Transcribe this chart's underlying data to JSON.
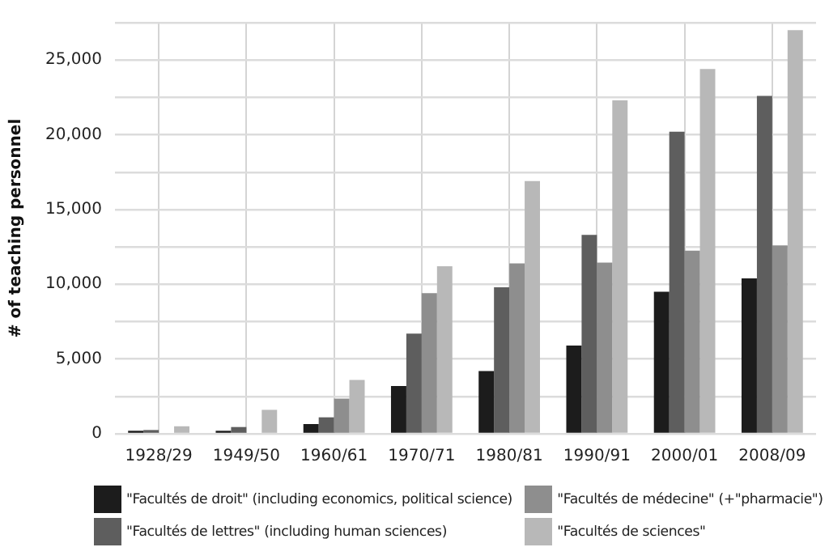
{
  "chart_data": {
    "type": "bar",
    "ylabel": "# of teaching personnel",
    "categories": [
      "1928/29",
      "1949/50",
      "1960/61",
      "1970/71",
      "1980/81",
      "1990/91",
      "2000/01",
      "2008/09"
    ],
    "series": [
      {
        "name": "\"Facultés de droit\" (including economics, political science)",
        "color": "#1c1c1c",
        "values": [
          200,
          200,
          650,
          3200,
          4200,
          5900,
          9500,
          10400
        ]
      },
      {
        "name": "\"Facultés de lettres\" (including human sciences)",
        "color": "#5e5e5e",
        "values": [
          250,
          450,
          1100,
          6700,
          9800,
          13300,
          20200,
          22600
        ]
      },
      {
        "name": "\"Facultés de médecine\" (+\"pharmacie\")",
        "color": "#8e8e8e",
        "values": [
          null,
          null,
          2350,
          9400,
          11400,
          11450,
          12250,
          12600
        ]
      },
      {
        "name": "\"Facultés de sciences\"",
        "color": "#b8b8b8",
        "values": [
          500,
          1600,
          3600,
          11200,
          16900,
          22300,
          24400,
          27000
        ]
      }
    ],
    "ylim": [
      0,
      27500
    ],
    "yticks": [
      0,
      {
        "value": 2500,
        "label": null
      },
      {
        "value": 5000,
        "label": "5,000"
      },
      {
        "value": 7500,
        "label": null
      },
      {
        "value": 10000,
        "label": "10,000"
      },
      {
        "value": 12500,
        "label": null
      },
      {
        "value": 15000,
        "label": "15,000"
      },
      {
        "value": 17500,
        "label": null
      },
      {
        "value": 20000,
        "label": "20,000"
      },
      {
        "value": 22500,
        "label": null
      },
      {
        "value": 25000,
        "label": "25,000"
      },
      {
        "value": 27500,
        "label": null
      }
    ],
    "grid": true,
    "legend": "bottom"
  }
}
